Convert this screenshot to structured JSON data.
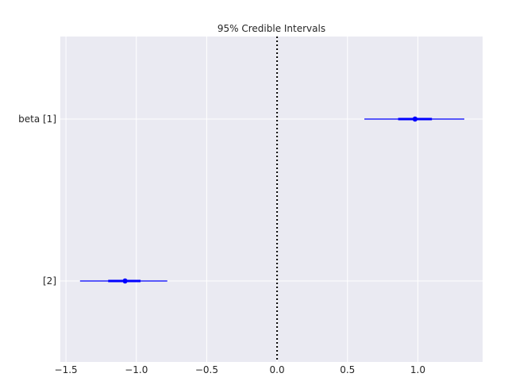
{
  "chart_data": {
    "type": "forest",
    "title": "95% Credible Intervals",
    "xlim": [
      -1.54,
      1.46
    ],
    "xticks": [
      -1.5,
      -1.0,
      -0.5,
      0.0,
      0.5,
      1.0
    ],
    "xtick_labels": [
      "−1.5",
      "−1.0",
      "−0.5",
      "0.0",
      "0.5",
      "1.0"
    ],
    "ylabels": [
      "beta [1]",
      "[2]"
    ],
    "reference_line": 0.0,
    "grid": true,
    "series": [
      {
        "label": "beta [1]",
        "median": 0.98,
        "ci_50": [
          0.86,
          1.1
        ],
        "ci_95": [
          0.62,
          1.33
        ]
      },
      {
        "label": "[2]",
        "median": -1.08,
        "ci_50": [
          -1.2,
          -0.97
        ],
        "ci_95": [
          -1.4,
          -0.78
        ]
      }
    ],
    "colors": {
      "background": "#eaeaf2",
      "grid": "#ffffff",
      "interval": "#0000ff",
      "reference": "#000000"
    }
  }
}
